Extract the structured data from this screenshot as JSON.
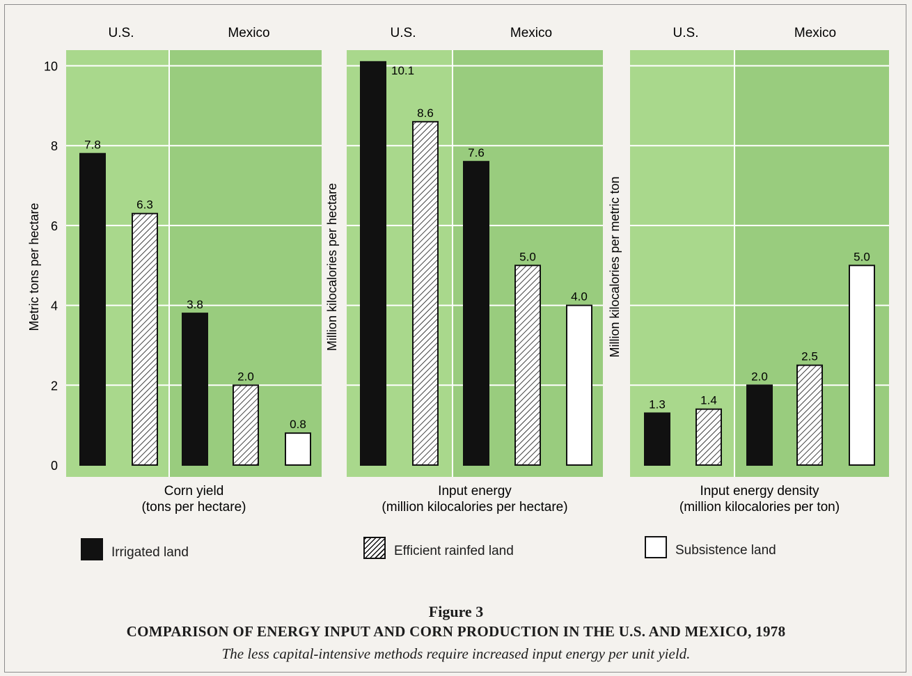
{
  "figure": {
    "label": "Figure 3",
    "title": "COMPARISON OF ENERGY INPUT AND CORN PRODUCTION IN THE U.S. AND MEXICO, 1978",
    "subtitle": "The less capital-intensive methods require increased input energy per unit yield."
  },
  "legend": [
    {
      "name": "Irrigated land",
      "style": "irrigated"
    },
    {
      "name": "Efficient rainfed land",
      "style": "rainfed"
    },
    {
      "name": "Subsistence land",
      "style": "subsistence"
    }
  ],
  "colors": {
    "panel_bg": "#a9d88c",
    "panel_bg_right": "#99cc7e",
    "grid": "#ffffff",
    "bar_dark": "#111111",
    "bar_light": "#ffffff"
  },
  "chart_data": [
    {
      "type": "bar",
      "group_labels": [
        "U.S.",
        "Mexico"
      ],
      "title": "Corn yield",
      "subtitle": "(tons per hectare)",
      "ylabel": "Metric tons per hectare",
      "ylim": [
        0,
        10.5
      ],
      "y_ticks": [
        "0",
        "2",
        "4",
        "6",
        "8",
        "10"
      ],
      "y_tick_values": [
        0,
        2,
        4,
        6,
        8,
        10
      ],
      "bars": [
        {
          "group": "U.S.",
          "type": "irrigated",
          "value": 7.8,
          "label": "7.8"
        },
        {
          "group": "U.S.",
          "type": "rainfed",
          "value": 6.3,
          "label": "6.3"
        },
        {
          "group": "Mexico",
          "type": "irrigated",
          "value": 3.8,
          "label": "3.8"
        },
        {
          "group": "Mexico",
          "type": "rainfed",
          "value": 2.0,
          "label": "2.0"
        },
        {
          "group": "Mexico",
          "type": "subsistence",
          "value": 0.8,
          "label": "0.8"
        }
      ]
    },
    {
      "type": "bar",
      "group_labels": [
        "U.S.",
        "Mexico"
      ],
      "title": "Input energy",
      "subtitle": "(million kilocalories per hectare)",
      "ylabel": "Million kilocalories per hectare",
      "ylim": [
        0,
        10.5
      ],
      "bars": [
        {
          "group": "U.S.",
          "type": "irrigated",
          "value": 10.1,
          "label": "10.1"
        },
        {
          "group": "U.S.",
          "type": "rainfed",
          "value": 8.6,
          "label": "8.6"
        },
        {
          "group": "Mexico",
          "type": "irrigated",
          "value": 7.6,
          "label": "7.6"
        },
        {
          "group": "Mexico",
          "type": "rainfed",
          "value": 5.0,
          "label": "5.0"
        },
        {
          "group": "Mexico",
          "type": "subsistence",
          "value": 4.0,
          "label": "4.0"
        }
      ]
    },
    {
      "type": "bar",
      "group_labels": [
        "U.S.",
        "Mexico"
      ],
      "title": "Input energy density",
      "subtitle": "(million kilocalories per ton)",
      "ylabel": "Million kilocalories per metric ton",
      "ylim": [
        0,
        10.5
      ],
      "bars": [
        {
          "group": "U.S.",
          "type": "irrigated",
          "value": 1.3,
          "label": "1.3"
        },
        {
          "group": "U.S.",
          "type": "rainfed",
          "value": 1.4,
          "label": "1.4"
        },
        {
          "group": "Mexico",
          "type": "irrigated",
          "value": 2.0,
          "label": "2.0"
        },
        {
          "group": "Mexico",
          "type": "rainfed",
          "value": 2.5,
          "label": "2.5"
        },
        {
          "group": "Mexico",
          "type": "subsistence",
          "value": 5.0,
          "label": "5.0"
        }
      ]
    }
  ]
}
